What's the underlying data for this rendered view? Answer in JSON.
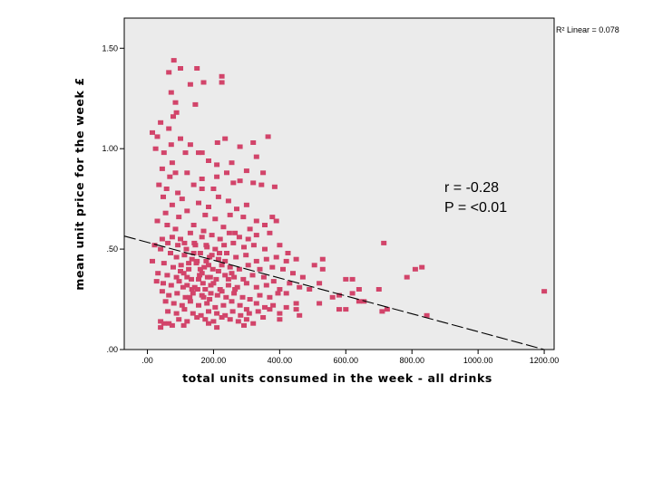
{
  "chart_data": {
    "type": "scatter",
    "title": "",
    "xlabel": "total units consumed in the week - all drinks",
    "ylabel": "mean unit price for the week £",
    "xlim": [
      -70,
      1230
    ],
    "ylim": [
      0,
      1.65
    ],
    "x_ticks": [
      0,
      200,
      400,
      600,
      800,
      1000,
      1200
    ],
    "x_tick_labels": [
      ".00",
      "200.00",
      "400.00",
      "600.00",
      "800.00",
      "1000.00",
      "1200.00"
    ],
    "y_ticks": [
      0,
      0.5,
      1.0,
      1.5
    ],
    "y_tick_labels": [
      ".00",
      ".50",
      "1.00",
      "1.50"
    ],
    "grid": false,
    "background": "#ebebeb",
    "marker_color": "#d2446a",
    "fit_line": {
      "style": "dashed",
      "color": "#000000",
      "x": [
        -70,
        1200
      ],
      "y": [
        0.565,
        0.0
      ],
      "r2_label": "R² Linear = 0.078"
    },
    "annotations": [
      "r = -0.28",
      "P = <0.01"
    ],
    "points": [
      [
        80,
        1.44
      ],
      [
        65,
        1.38
      ],
      [
        100,
        1.4
      ],
      [
        130,
        1.32
      ],
      [
        170,
        1.33
      ],
      [
        150,
        1.4
      ],
      [
        225,
        1.36
      ],
      [
        225,
        1.33
      ],
      [
        72,
        1.28
      ],
      [
        85,
        1.23
      ],
      [
        88,
        1.18
      ],
      [
        78,
        1.16
      ],
      [
        145,
        1.22
      ],
      [
        40,
        1.13
      ],
      [
        15,
        1.08
      ],
      [
        30,
        1.06
      ],
      [
        65,
        1.1
      ],
      [
        72,
        1.02
      ],
      [
        100,
        1.05
      ],
      [
        130,
        1.02
      ],
      [
        155,
        0.98
      ],
      [
        212,
        1.03
      ],
      [
        235,
        1.05
      ],
      [
        280,
        1.01
      ],
      [
        320,
        1.03
      ],
      [
        365,
        1.06
      ],
      [
        25,
        1.0
      ],
      [
        50,
        0.98
      ],
      [
        75,
        0.93
      ],
      [
        115,
        0.98
      ],
      [
        165,
        0.98
      ],
      [
        185,
        0.94
      ],
      [
        330,
        0.96
      ],
      [
        255,
        0.93
      ],
      [
        210,
        0.92
      ],
      [
        45,
        0.9
      ],
      [
        68,
        0.86
      ],
      [
        85,
        0.88
      ],
      [
        120,
        0.88
      ],
      [
        165,
        0.85
      ],
      [
        210,
        0.86
      ],
      [
        240,
        0.88
      ],
      [
        280,
        0.84
      ],
      [
        300,
        0.89
      ],
      [
        350,
        0.88
      ],
      [
        35,
        0.82
      ],
      [
        58,
        0.8
      ],
      [
        92,
        0.78
      ],
      [
        140,
        0.82
      ],
      [
        165,
        0.8
      ],
      [
        200,
        0.8
      ],
      [
        260,
        0.83
      ],
      [
        320,
        0.83
      ],
      [
        345,
        0.82
      ],
      [
        385,
        0.81
      ],
      [
        48,
        0.76
      ],
      [
        75,
        0.72
      ],
      [
        105,
        0.75
      ],
      [
        155,
        0.73
      ],
      [
        185,
        0.71
      ],
      [
        215,
        0.76
      ],
      [
        245,
        0.74
      ],
      [
        270,
        0.7
      ],
      [
        300,
        0.72
      ],
      [
        55,
        0.68
      ],
      [
        95,
        0.66
      ],
      [
        120,
        0.69
      ],
      [
        175,
        0.67
      ],
      [
        205,
        0.65
      ],
      [
        250,
        0.67
      ],
      [
        290,
        0.66
      ],
      [
        330,
        0.64
      ],
      [
        378,
        0.66
      ],
      [
        390,
        0.64
      ],
      [
        30,
        0.64
      ],
      [
        60,
        0.62
      ],
      [
        85,
        0.6
      ],
      [
        140,
        0.62
      ],
      [
        170,
        0.59
      ],
      [
        230,
        0.61
      ],
      [
        265,
        0.58
      ],
      [
        310,
        0.6
      ],
      [
        355,
        0.62
      ],
      [
        75,
        0.56
      ],
      [
        100,
        0.55
      ],
      [
        130,
        0.58
      ],
      [
        165,
        0.56
      ],
      [
        195,
        0.57
      ],
      [
        220,
        0.55
      ],
      [
        248,
        0.58
      ],
      [
        278,
        0.56
      ],
      [
        305,
        0.55
      ],
      [
        330,
        0.57
      ],
      [
        370,
        0.58
      ],
      [
        45,
        0.55
      ],
      [
        62,
        0.53
      ],
      [
        92,
        0.52
      ],
      [
        118,
        0.5
      ],
      [
        142,
        0.53
      ],
      [
        178,
        0.52
      ],
      [
        205,
        0.5
      ],
      [
        232,
        0.52
      ],
      [
        260,
        0.53
      ],
      [
        292,
        0.51
      ],
      [
        322,
        0.52
      ],
      [
        355,
        0.5
      ],
      [
        400,
        0.52
      ],
      [
        425,
        0.48
      ],
      [
        22,
        0.52
      ],
      [
        40,
        0.5
      ],
      [
        70,
        0.48
      ],
      [
        88,
        0.46
      ],
      [
        112,
        0.47
      ],
      [
        135,
        0.45
      ],
      [
        160,
        0.48
      ],
      [
        188,
        0.46
      ],
      [
        215,
        0.45
      ],
      [
        240,
        0.48
      ],
      [
        268,
        0.46
      ],
      [
        298,
        0.47
      ],
      [
        330,
        0.44
      ],
      [
        360,
        0.45
      ],
      [
        390,
        0.46
      ],
      [
        420,
        0.44
      ],
      [
        450,
        0.45
      ],
      [
        15,
        0.44
      ],
      [
        50,
        0.43
      ],
      [
        78,
        0.41
      ],
      [
        102,
        0.42
      ],
      [
        125,
        0.4
      ],
      [
        148,
        0.43
      ],
      [
        172,
        0.41
      ],
      [
        198,
        0.4
      ],
      [
        225,
        0.42
      ],
      [
        250,
        0.41
      ],
      [
        278,
        0.4
      ],
      [
        305,
        0.42
      ],
      [
        340,
        0.4
      ],
      [
        378,
        0.41
      ],
      [
        410,
        0.4
      ],
      [
        32,
        0.38
      ],
      [
        60,
        0.37
      ],
      [
        88,
        0.36
      ],
      [
        110,
        0.38
      ],
      [
        133,
        0.35
      ],
      [
        158,
        0.37
      ],
      [
        182,
        0.36
      ],
      [
        208,
        0.35
      ],
      [
        235,
        0.37
      ],
      [
        262,
        0.36
      ],
      [
        290,
        0.35
      ],
      [
        318,
        0.37
      ],
      [
        352,
        0.36
      ],
      [
        382,
        0.34
      ],
      [
        440,
        0.38
      ],
      [
        470,
        0.36
      ],
      [
        28,
        0.34
      ],
      [
        48,
        0.33
      ],
      [
        72,
        0.32
      ],
      [
        96,
        0.34
      ],
      [
        120,
        0.32
      ],
      [
        143,
        0.31
      ],
      [
        168,
        0.33
      ],
      [
        192,
        0.32
      ],
      [
        220,
        0.3
      ],
      [
        245,
        0.32
      ],
      [
        272,
        0.31
      ],
      [
        300,
        0.33
      ],
      [
        330,
        0.31
      ],
      [
        360,
        0.32
      ],
      [
        400,
        0.3
      ],
      [
        430,
        0.33
      ],
      [
        460,
        0.31
      ],
      [
        45,
        0.29
      ],
      [
        65,
        0.27
      ],
      [
        90,
        0.28
      ],
      [
        115,
        0.26
      ],
      [
        138,
        0.28
      ],
      [
        165,
        0.27
      ],
      [
        188,
        0.25
      ],
      [
        212,
        0.27
      ],
      [
        238,
        0.26
      ],
      [
        262,
        0.28
      ],
      [
        288,
        0.26
      ],
      [
        310,
        0.25
      ],
      [
        340,
        0.27
      ],
      [
        370,
        0.26
      ],
      [
        395,
        0.28
      ],
      [
        55,
        0.24
      ],
      [
        80,
        0.23
      ],
      [
        105,
        0.22
      ],
      [
        130,
        0.24
      ],
      [
        155,
        0.22
      ],
      [
        180,
        0.23
      ],
      [
        205,
        0.21
      ],
      [
        230,
        0.22
      ],
      [
        255,
        0.24
      ],
      [
        280,
        0.22
      ],
      [
        300,
        0.2
      ],
      [
        330,
        0.23
      ],
      [
        355,
        0.21
      ],
      [
        380,
        0.22
      ],
      [
        420,
        0.21
      ],
      [
        450,
        0.23
      ],
      [
        62,
        0.19
      ],
      [
        88,
        0.18
      ],
      [
        112,
        0.2
      ],
      [
        138,
        0.18
      ],
      [
        162,
        0.17
      ],
      [
        185,
        0.19
      ],
      [
        210,
        0.18
      ],
      [
        235,
        0.17
      ],
      [
        258,
        0.19
      ],
      [
        282,
        0.17
      ],
      [
        308,
        0.18
      ],
      [
        335,
        0.19
      ],
      [
        370,
        0.2
      ],
      [
        400,
        0.18
      ],
      [
        460,
        0.17
      ],
      [
        450,
        0.2
      ],
      [
        40,
        0.14
      ],
      [
        65,
        0.13
      ],
      [
        95,
        0.15
      ],
      [
        120,
        0.14
      ],
      [
        150,
        0.16
      ],
      [
        175,
        0.15
      ],
      [
        200,
        0.14
      ],
      [
        225,
        0.16
      ],
      [
        250,
        0.15
      ],
      [
        275,
        0.14
      ],
      [
        300,
        0.15
      ],
      [
        320,
        0.13
      ],
      [
        350,
        0.16
      ],
      [
        400,
        0.15
      ],
      [
        40,
        0.11
      ],
      [
        50,
        0.13
      ],
      [
        110,
        0.12
      ],
      [
        185,
        0.13
      ],
      [
        292,
        0.12
      ],
      [
        210,
        0.11
      ],
      [
        75,
        0.12
      ],
      [
        155,
        0.35
      ],
      [
        165,
        0.38
      ],
      [
        175,
        0.3
      ],
      [
        185,
        0.42
      ],
      [
        195,
        0.47
      ],
      [
        200,
        0.33
      ],
      [
        215,
        0.39
      ],
      [
        225,
        0.29
      ],
      [
        235,
        0.44
      ],
      [
        245,
        0.35
      ],
      [
        255,
        0.38
      ],
      [
        265,
        0.3
      ],
      [
        120,
        0.36
      ],
      [
        125,
        0.43
      ],
      [
        135,
        0.3
      ],
      [
        140,
        0.48
      ],
      [
        150,
        0.44
      ],
      [
        160,
        0.4
      ],
      [
        170,
        0.26
      ],
      [
        180,
        0.51
      ],
      [
        190,
        0.36
      ],
      [
        100,
        0.39
      ],
      [
        108,
        0.31
      ],
      [
        112,
        0.53
      ],
      [
        128,
        0.26
      ],
      [
        145,
        0.52
      ],
      [
        152,
        0.3
      ],
      [
        178,
        0.44
      ],
      [
        192,
        0.28
      ],
      [
        218,
        0.48
      ],
      [
        420,
        0.28
      ],
      [
        490,
        0.3
      ],
      [
        505,
        0.42
      ],
      [
        530,
        0.4
      ],
      [
        560,
        0.26
      ],
      [
        600,
        0.2
      ],
      [
        620,
        0.35
      ],
      [
        640,
        0.3
      ],
      [
        655,
        0.24
      ],
      [
        700,
        0.3
      ],
      [
        715,
        0.53
      ],
      [
        710,
        0.19
      ],
      [
        725,
        0.2
      ],
      [
        530,
        0.45
      ],
      [
        520,
        0.23
      ],
      [
        580,
        0.27
      ],
      [
        640,
        0.24
      ],
      [
        830,
        0.41
      ],
      [
        810,
        0.4
      ],
      [
        785,
        0.36
      ],
      [
        845,
        0.17
      ],
      [
        1200,
        0.29
      ],
      [
        520,
        0.33
      ],
      [
        580,
        0.2
      ],
      [
        600,
        0.35
      ],
      [
        620,
        0.28
      ]
    ]
  }
}
